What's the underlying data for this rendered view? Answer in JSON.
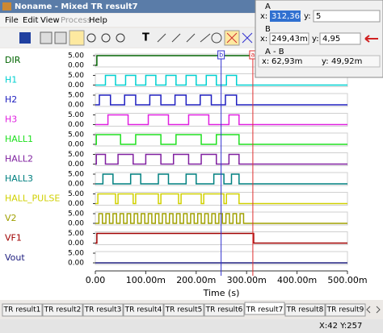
{
  "window": {
    "title": "Noname - Mixed TR result7",
    "menu": [
      "File",
      "Edit",
      "View",
      "Process",
      "Help"
    ]
  },
  "cursor_panel": {
    "x_label": "x:",
    "y_label": "y:",
    "a": {
      "label": "A",
      "x": "312,36m",
      "y": "5"
    },
    "b": {
      "label": "B",
      "x": "249,43m",
      "y": "4,95"
    },
    "diff": {
      "label": "A - B",
      "x": "62,93m",
      "y": "49,92m"
    }
  },
  "chart_data": {
    "type": "line",
    "x_label": "Time (s)",
    "xlim": [
      0,
      0.5
    ],
    "xticks": [
      {
        "value": 0,
        "label": "0.00"
      },
      {
        "value": 0.1,
        "label": "100.00m"
      },
      {
        "value": 0.2,
        "label": "200.00m"
      },
      {
        "value": 0.3,
        "label": "300.00m"
      },
      {
        "value": 0.4,
        "label": "400.00m"
      },
      {
        "value": 0.5,
        "label": "500.00m"
      }
    ],
    "ylim": [
      0,
      5
    ],
    "yticks": [
      {
        "value": 5,
        "label": "5.00"
      },
      {
        "value": 0,
        "label": "0.00"
      }
    ],
    "cursors": [
      {
        "name": "b",
        "x": 0.24943,
        "color": "#3030d0"
      },
      {
        "name": "a",
        "x": 0.31236,
        "color": "#e03030"
      }
    ],
    "series": [
      {
        "name": "DIR",
        "color": "#006400",
        "x": [
          0,
          0.003
        ],
        "values": [
          0,
          5
        ]
      },
      {
        "name": "H1",
        "color": "#00d0d0",
        "x": [
          0,
          0.02,
          0.04,
          0.06,
          0.08,
          0.1,
          0.12,
          0.14,
          0.16,
          0.18,
          0.2,
          0.22,
          0.24,
          0.26,
          0.28
        ],
        "values": [
          0,
          5,
          0,
          5,
          0,
          5,
          0,
          5,
          0,
          5,
          0,
          5,
          0,
          5,
          0
        ]
      },
      {
        "name": "H2",
        "color": "#2020c0",
        "x": [
          0,
          0.008,
          0.03,
          0.058,
          0.08,
          0.108,
          0.13,
          0.158,
          0.18,
          0.208,
          0.23,
          0.258,
          0.28
        ],
        "values": [
          0,
          5,
          0,
          5,
          0,
          5,
          0,
          5,
          0,
          5,
          0,
          5,
          0
        ]
      },
      {
        "name": "H3",
        "color": "#e020e0",
        "x": [
          0,
          0.025,
          0.065,
          0.105,
          0.145,
          0.185,
          0.225,
          0.265,
          0.285
        ],
        "values": [
          0,
          5,
          0,
          5,
          0,
          5,
          0,
          5,
          0
        ]
      },
      {
        "name": "HALL1",
        "color": "#20e020",
        "x": [
          0,
          0.002,
          0.05,
          0.08,
          0.13,
          0.16,
          0.21,
          0.24,
          0.285
        ],
        "values": [
          0,
          5,
          0,
          5,
          0,
          5,
          0,
          5,
          0
        ]
      },
      {
        "name": "HALL2",
        "color": "#8020a0",
        "x": [
          0,
          0.002,
          0.02,
          0.045,
          0.075,
          0.1,
          0.13,
          0.155,
          0.185,
          0.21,
          0.24,
          0.265,
          0.285
        ],
        "values": [
          0,
          5,
          0,
          5,
          0,
          5,
          0,
          5,
          0,
          5,
          0,
          5,
          0
        ]
      },
      {
        "name": "HALL3",
        "color": "#008080",
        "x": [
          0,
          0.015,
          0.035,
          0.07,
          0.09,
          0.125,
          0.145,
          0.18,
          0.2,
          0.235,
          0.255,
          0.27,
          0.285
        ],
        "values": [
          0,
          5,
          0,
          5,
          0,
          5,
          0,
          5,
          0,
          5,
          0,
          5,
          0
        ]
      },
      {
        "name": "HALL_PULSE",
        "color": "#d0d000",
        "x": [
          0,
          0.005,
          0.04,
          0.045,
          0.075,
          0.08,
          0.125,
          0.13,
          0.165,
          0.17,
          0.21,
          0.215,
          0.255,
          0.26,
          0.285
        ],
        "values": [
          0,
          5,
          0,
          5,
          0,
          5,
          0,
          5,
          0,
          5,
          0,
          5,
          0,
          5,
          0
        ]
      },
      {
        "name": "V2",
        "color": "#a0a000",
        "x": [
          0,
          0.007,
          0.014,
          0.021,
          0.028,
          0.035,
          0.042,
          0.049,
          0.056,
          0.063,
          0.07,
          0.077,
          0.084,
          0.091,
          0.098,
          0.105,
          0.112,
          0.119,
          0.126,
          0.133,
          0.14,
          0.147,
          0.154,
          0.161,
          0.168,
          0.175,
          0.182,
          0.189,
          0.196,
          0.203,
          0.21,
          0.217,
          0.224,
          0.231,
          0.238,
          0.245,
          0.252,
          0.259,
          0.266,
          0.273,
          0.28,
          0.287,
          0.294
        ],
        "values": [
          0,
          5,
          0,
          5,
          0,
          5,
          0,
          5,
          0,
          5,
          0,
          5,
          0,
          5,
          0,
          5,
          0,
          5,
          0,
          5,
          0,
          5,
          0,
          5,
          0,
          5,
          0,
          5,
          0,
          5,
          0,
          5,
          0,
          5,
          0,
          5,
          0,
          5,
          0,
          5,
          0,
          5,
          0
        ]
      },
      {
        "name": "VF1",
        "color": "#a00000",
        "x": [
          0,
          0.003,
          0.314
        ],
        "values": [
          0,
          5,
          0
        ]
      },
      {
        "name": "Vout",
        "color": "#202080",
        "x": [
          0
        ],
        "values": [
          0
        ]
      }
    ]
  },
  "tabs": [
    "TR result1",
    "TR result2",
    "TR result3",
    "TR result4",
    "TR result5",
    "TR result6",
    "TR result7",
    "TR result8",
    "TR result9"
  ],
  "status": "X:42  Y:257"
}
